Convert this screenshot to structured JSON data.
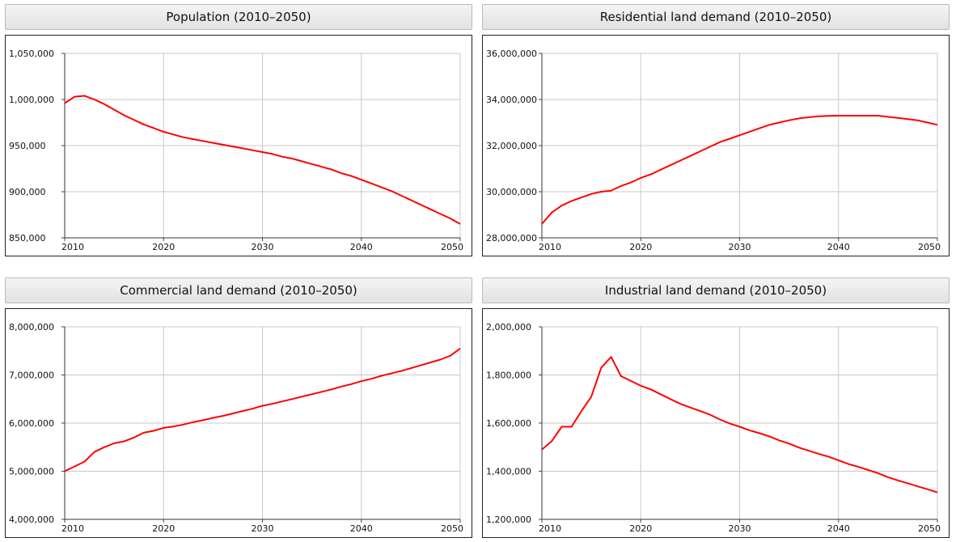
{
  "chart_data": [
    {
      "type": "line",
      "title": "Population (2010–2050)",
      "xlim": [
        2010,
        2050
      ],
      "ylim": [
        850000,
        1050000
      ],
      "yticks": [
        850000,
        900000,
        950000,
        1000000,
        1050000
      ],
      "ytick_labels": [
        "850,000",
        "900,000",
        "950,000",
        "1,000,000",
        "1,050,000"
      ],
      "xticks": [
        2010,
        2020,
        2030,
        2040,
        2050
      ],
      "xtick_labels": [
        "2010",
        "2020",
        "2030",
        "2040",
        "2050"
      ],
      "grid": true,
      "color": "#ff0000",
      "series": [
        {
          "x": [
            2010,
            2011,
            2012,
            2013,
            2014,
            2015,
            2016,
            2017,
            2018,
            2019,
            2020,
            2021,
            2022,
            2023,
            2024,
            2025,
            2026,
            2027,
            2028,
            2029,
            2030,
            2031,
            2032,
            2033,
            2034,
            2035,
            2036,
            2037,
            2038,
            2039,
            2040,
            2041,
            2042,
            2043,
            2044,
            2045,
            2046,
            2047,
            2048,
            2049,
            2050
          ],
          "values": [
            996000,
            1003000,
            1004000,
            1000000,
            995000,
            989000,
            983000,
            978000,
            973000,
            969000,
            965000,
            962000,
            959000,
            957000,
            955000,
            953000,
            951000,
            949000,
            947000,
            945000,
            943000,
            941000,
            938000,
            936000,
            933000,
            930000,
            927000,
            924000,
            920000,
            917000,
            913000,
            909000,
            905000,
            901000,
            896000,
            891000,
            886000,
            881000,
            876000,
            871000,
            865000
          ]
        }
      ]
    },
    {
      "type": "line",
      "title": "Residential land demand (2010–2050)",
      "xlim": [
        2010,
        2050
      ],
      "ylim": [
        28000000,
        36000000
      ],
      "yticks": [
        28000000,
        30000000,
        32000000,
        34000000,
        36000000
      ],
      "ytick_labels": [
        "28,000,000",
        "30,000,000",
        "32,000,000",
        "34,000,000",
        "36,000,000"
      ],
      "xticks": [
        2010,
        2020,
        2030,
        2040,
        2050
      ],
      "xtick_labels": [
        "2010",
        "2020",
        "2030",
        "2040",
        "2050"
      ],
      "grid": true,
      "color": "#ff0000",
      "series": [
        {
          "x": [
            2010,
            2011,
            2012,
            2013,
            2014,
            2015,
            2016,
            2017,
            2018,
            2019,
            2020,
            2021,
            2022,
            2023,
            2024,
            2025,
            2026,
            2027,
            2028,
            2029,
            2030,
            2031,
            2032,
            2033,
            2034,
            2035,
            2036,
            2037,
            2038,
            2039,
            2040,
            2041,
            2042,
            2043,
            2044,
            2045,
            2046,
            2047,
            2048,
            2049,
            2050
          ],
          "values": [
            28600000,
            29100000,
            29400000,
            29600000,
            29750000,
            29900000,
            30000000,
            30050000,
            30250000,
            30400000,
            30600000,
            30750000,
            30950000,
            31150000,
            31350000,
            31550000,
            31750000,
            31950000,
            32150000,
            32300000,
            32450000,
            32600000,
            32750000,
            32900000,
            33000000,
            33100000,
            33180000,
            33230000,
            33270000,
            33290000,
            33300000,
            33300000,
            33300000,
            33300000,
            33300000,
            33250000,
            33200000,
            33150000,
            33100000,
            33000000,
            32900000
          ]
        }
      ]
    },
    {
      "type": "line",
      "title": "Commercial land demand (2010–2050)",
      "xlim": [
        2010,
        2050
      ],
      "ylim": [
        4000000,
        8000000
      ],
      "yticks": [
        4000000,
        5000000,
        6000000,
        7000000,
        8000000
      ],
      "ytick_labels": [
        "4,000,000",
        "5,000,000",
        "6,000,000",
        "7,000,000",
        "8,000,000"
      ],
      "xticks": [
        2010,
        2020,
        2030,
        2040,
        2050
      ],
      "xtick_labels": [
        "2010",
        "2020",
        "2030",
        "2040",
        "2050"
      ],
      "grid": true,
      "color": "#ff0000",
      "series": [
        {
          "x": [
            2010,
            2011,
            2012,
            2013,
            2014,
            2015,
            2016,
            2017,
            2018,
            2019,
            2020,
            2021,
            2022,
            2023,
            2024,
            2025,
            2026,
            2027,
            2028,
            2029,
            2030,
            2031,
            2032,
            2033,
            2034,
            2035,
            2036,
            2037,
            2038,
            2039,
            2040,
            2041,
            2042,
            2043,
            2044,
            2045,
            2046,
            2047,
            2048,
            2049,
            2050
          ],
          "values": [
            5000000,
            5100000,
            5200000,
            5400000,
            5500000,
            5580000,
            5620000,
            5700000,
            5800000,
            5840000,
            5900000,
            5930000,
            5970000,
            6020000,
            6060000,
            6110000,
            6150000,
            6200000,
            6250000,
            6300000,
            6360000,
            6400000,
            6450000,
            6500000,
            6550000,
            6600000,
            6650000,
            6700000,
            6760000,
            6810000,
            6870000,
            6920000,
            6980000,
            7030000,
            7080000,
            7140000,
            7200000,
            7260000,
            7320000,
            7400000,
            7550000
          ]
        }
      ]
    },
    {
      "type": "line",
      "title": "Industrial land demand (2010–2050)",
      "xlim": [
        2010,
        2050
      ],
      "ylim": [
        1200000,
        2000000
      ],
      "yticks": [
        1200000,
        1400000,
        1600000,
        1800000,
        2000000
      ],
      "ytick_labels": [
        "1,200,000",
        "1,400,000",
        "1,600,000",
        "1,800,000",
        "2,000,000"
      ],
      "xticks": [
        2010,
        2020,
        2030,
        2040,
        2050
      ],
      "xtick_labels": [
        "2010",
        "2020",
        "2030",
        "2040",
        "2050"
      ],
      "grid": true,
      "color": "#ff0000",
      "series": [
        {
          "x": [
            2010,
            2011,
            2012,
            2013,
            2014,
            2015,
            2016,
            2017,
            2018,
            2019,
            2020,
            2021,
            2022,
            2023,
            2024,
            2025,
            2026,
            2027,
            2028,
            2029,
            2030,
            2031,
            2032,
            2033,
            2034,
            2035,
            2036,
            2037,
            2038,
            2039,
            2040,
            2041,
            2042,
            2043,
            2044,
            2045,
            2046,
            2047,
            2048,
            2049,
            2050
          ],
          "values": [
            1490000,
            1525000,
            1585000,
            1585000,
            1650000,
            1710000,
            1830000,
            1875000,
            1795000,
            1775000,
            1755000,
            1740000,
            1720000,
            1700000,
            1680000,
            1665000,
            1650000,
            1635000,
            1615000,
            1598000,
            1585000,
            1570000,
            1558000,
            1545000,
            1528000,
            1515000,
            1498000,
            1485000,
            1472000,
            1460000,
            1445000,
            1430000,
            1418000,
            1405000,
            1392000,
            1375000,
            1362000,
            1350000,
            1337000,
            1325000,
            1312000
          ]
        }
      ]
    }
  ]
}
